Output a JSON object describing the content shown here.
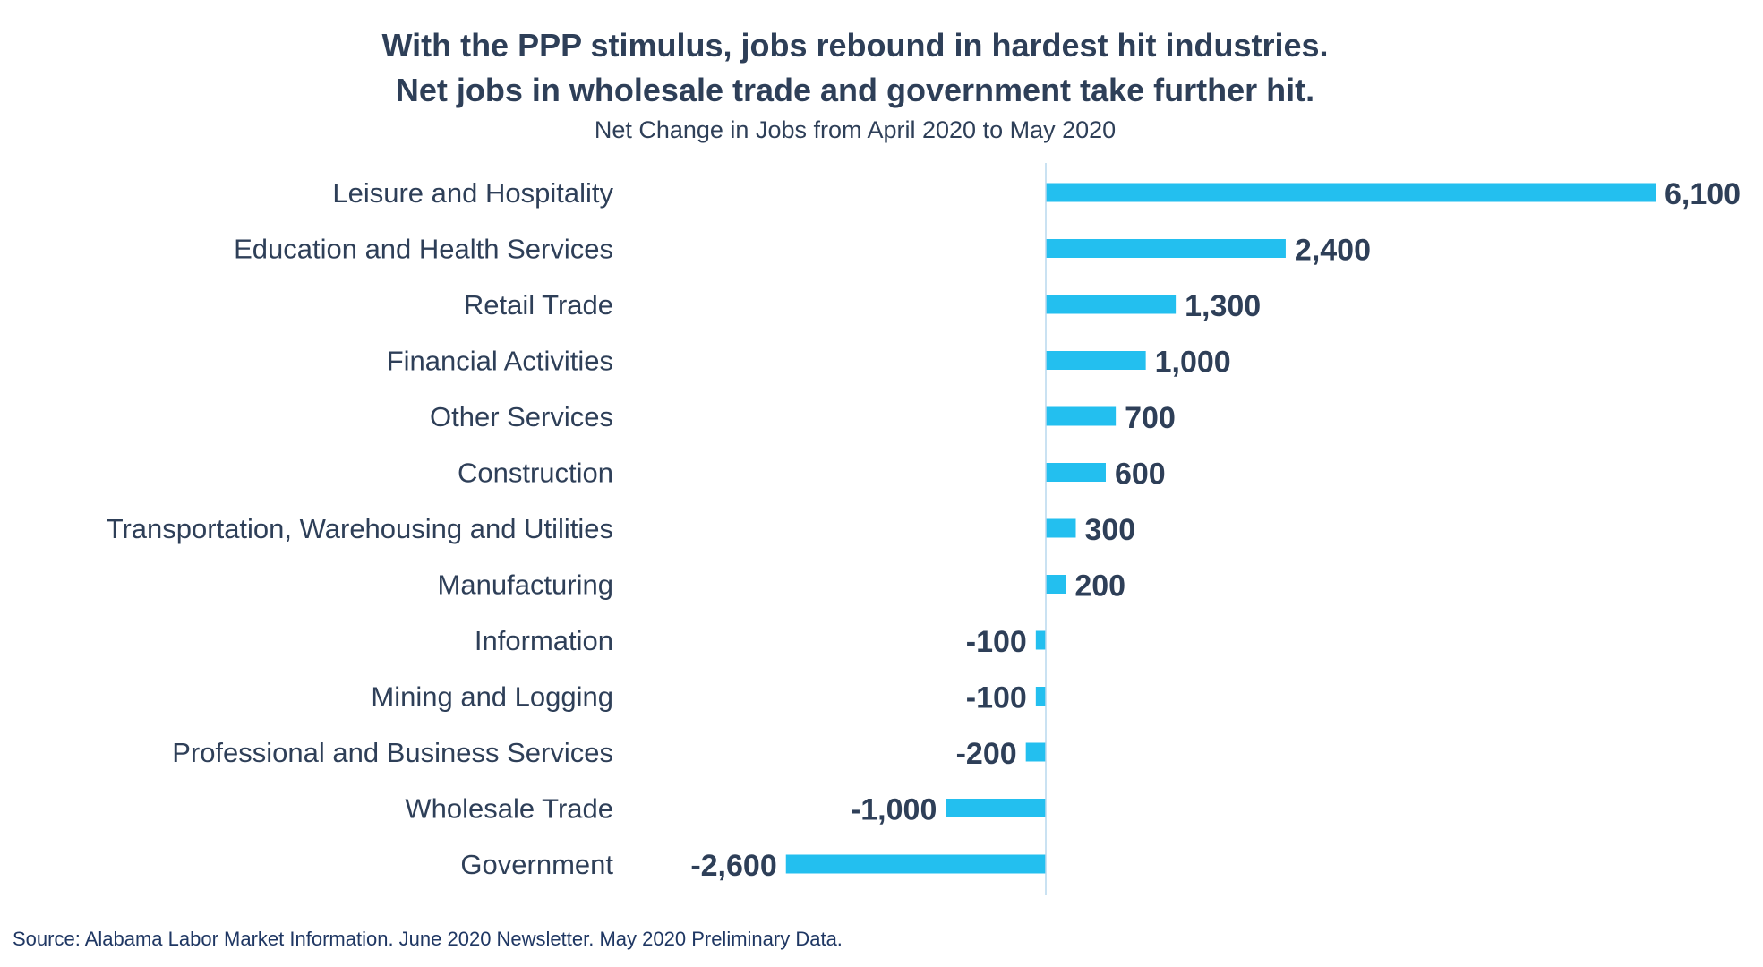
{
  "chart_data": {
    "type": "bar",
    "orientation": "horizontal",
    "title": [
      "With the PPP stimulus, jobs rebound in hardest hit industries.",
      "Net jobs in wholesale trade and government take further hit."
    ],
    "subtitle": "Net Change in Jobs from April 2020 to May 2020",
    "categories": [
      "Leisure and Hospitality",
      "Education and Health Services",
      "Retail Trade",
      "Financial Activities",
      "Other Services",
      "Construction",
      "Transportation, Warehousing and Utilities",
      "Manufacturing",
      "Information",
      "Mining and Logging",
      "Professional and Business Services",
      "Wholesale Trade",
      "Government"
    ],
    "values": [
      6100,
      2400,
      1300,
      1000,
      700,
      600,
      300,
      200,
      -100,
      -100,
      -200,
      -1000,
      -2600
    ],
    "value_labels": [
      "6,100",
      "2,400",
      "1,300",
      "1,000",
      "700",
      "600",
      "300",
      "200",
      "-100",
      "-100",
      "-200",
      "-1,000",
      "-2,600"
    ],
    "xlim": [
      -2600,
      6100
    ],
    "xlabel": "",
    "ylabel": "",
    "grid": false,
    "legend": "none",
    "bar_color": "#23bfef",
    "axis_color": "#b8d9ee",
    "text_color": "#2e3f58"
  },
  "source": "Source: Alabama Labor Market Information. June 2020 Newsletter. May 2020 Preliminary Data."
}
